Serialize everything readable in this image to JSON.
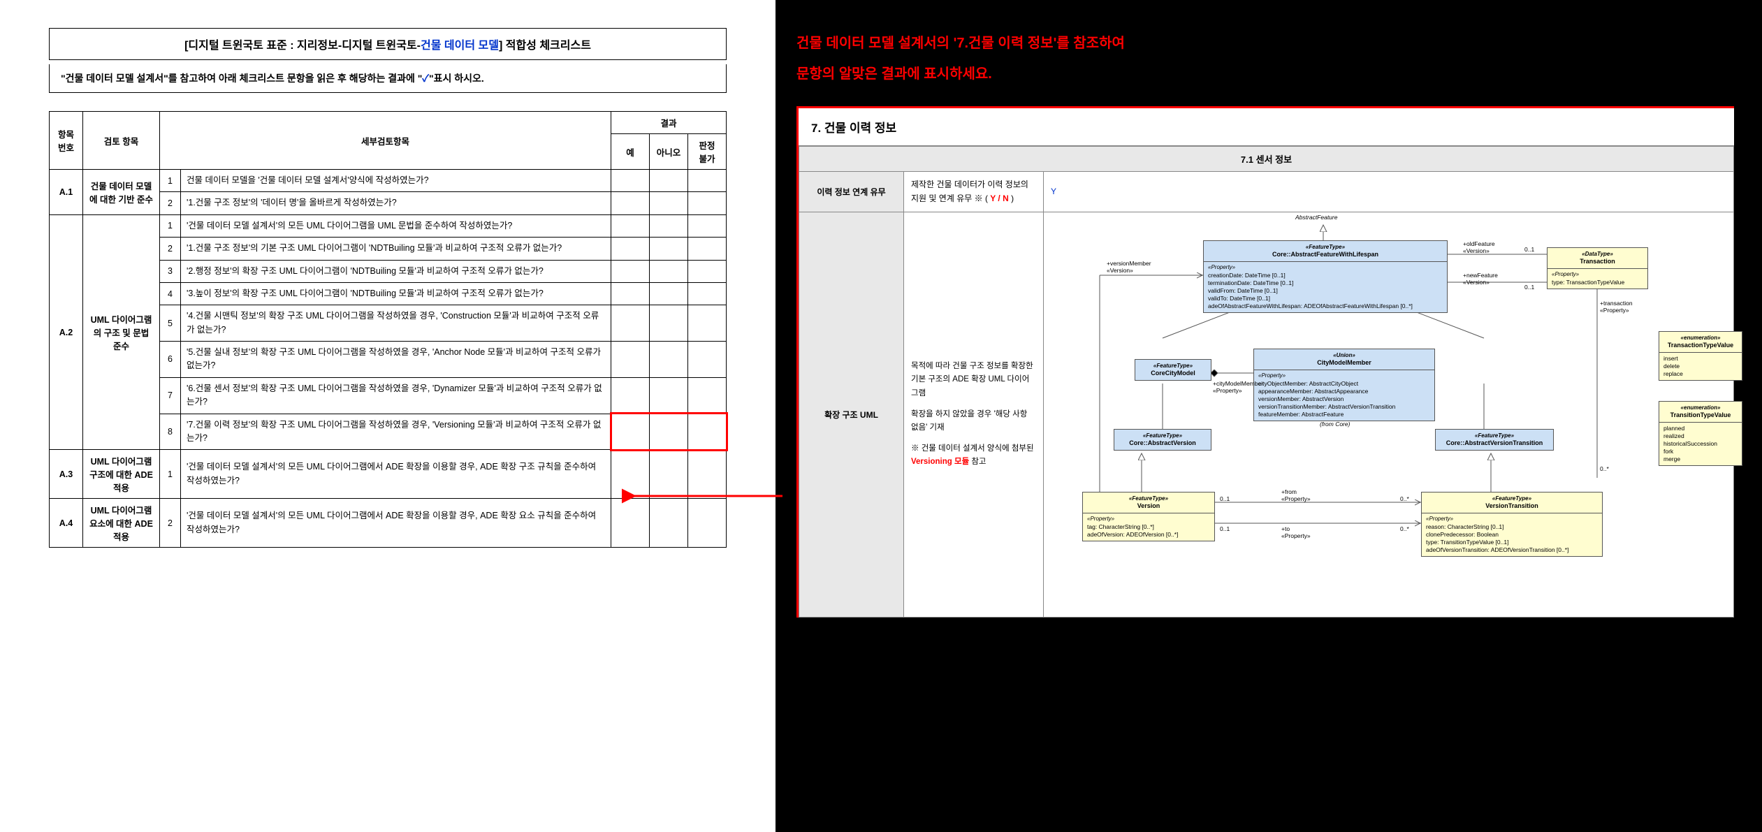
{
  "header": {
    "title_prefix": "[디지털 트윈국토 표준 : 지리정보-디지털 트윈국토-",
    "title_highlight": "건물 데이터 모델",
    "title_suffix": "] 적합성 체크리스트",
    "instruction_prefix": "\"건물 데이터 모델 설계서\"를 참고하여 아래 체크리스트 문항을 읽은 후 해당하는 결과에 \"",
    "instruction_check": "✓",
    "instruction_suffix": "\"표시 하시오."
  },
  "table": {
    "columns": {
      "item_no": "항목\n번호",
      "review_item": "검토 항목",
      "detail": "세부검토항목",
      "result": "결과",
      "yes": "예",
      "no": "아니오",
      "na": "판정\n불가"
    },
    "rows": [
      {
        "id": "A.1",
        "category": "건물 데이터 모델에 대한 기반 준수",
        "items": [
          {
            "n": "1",
            "text": "건물 데이터 모델을 '건물 데이터 모델 설계서'양식에 작성하였는가?"
          },
          {
            "n": "2",
            "text": "'1.건물 구조 정보'의 '데이터 명'을 올바르게 작성하였는가?"
          }
        ]
      },
      {
        "id": "A.2",
        "category": "UML 다이어그램의 구조 및 문법 준수",
        "items": [
          {
            "n": "1",
            "text": "'건물 데이터 모델 설계서'의 모든 UML 다이어그램을 UML 문법을 준수하여 작성하였는가?"
          },
          {
            "n": "2",
            "text": "'1.건물 구조 정보'의 기본 구조 UML 다이어그램이 'NDTBuiling 모듈'과 비교하여 구조적 오류가 없는가?"
          },
          {
            "n": "3",
            "text": "'2.행정 정보'의 확장 구조 UML 다이어그램이 'NDTBuiling 모듈'과 비교하여 구조적 오류가 없는가?"
          },
          {
            "n": "4",
            "text": "'3.높이 정보'의 확장 구조 UML 다이어그램이 'NDTBuiling 모듈'과 비교하여 구조적 오류가 없는가?"
          },
          {
            "n": "5",
            "text": "'4.건물 시맨틱 정보'의 확장 구조 UML 다이어그램을 작성하였을 경우, 'Construction 모듈'과 비교하여 구조적 오류가 없는가?"
          },
          {
            "n": "6",
            "text": "'5.건물 실내 정보'의 확장 구조 UML 다이어그램을 작성하였을 경우, 'Anchor Node 모듈'과 비교하여 구조적 오류가 없는가?"
          },
          {
            "n": "7",
            "text": "'6.건물 센서 정보'의 확장 구조 UML 다이어그램을 작성하였을 경우, 'Dynamizer 모듈'과 비교하여 구조적 오류가 없는가?"
          },
          {
            "n": "8",
            "text": "'7.건물 이력 정보'의 확장 구조 UML 다이어그램을 작성하였을 경우, 'Versioning 모듈'과 비교하여 구조적 오류가 없는가?",
            "highlight": true
          }
        ]
      },
      {
        "id": "A.3",
        "category": "UML 다이어그램 구조에 대한 ADE 적용",
        "items": [
          {
            "n": "1",
            "text": "'건물 데이터 모델 설계서'의 모든 UML 다이어그램에서 ADE 확장을 이용할 경우, ADE 확장 구조 규칙을 준수하여 작성하였는가?"
          }
        ]
      },
      {
        "id": "A.4",
        "category": "UML 다이어그램 요소에 대한 ADE 적용",
        "items": [
          {
            "n": "2",
            "text": "'건물 데이터 모델 설계서'의 모든 UML 다이어그램에서 ADE 확장을 이용할 경우, ADE 확장 요소 규칙을 준수하여 작성하였는가?"
          }
        ]
      }
    ]
  },
  "right": {
    "instruction_line1": "건물 데이터 모델 설계서의 '7.건물 이력 정보'를 참조하여",
    "instruction_line2": "문항의 알맞은 결과에 표시하세요.",
    "section_title": "7. 건물 이력 정보",
    "subsection_title": "7.1 센서 정보",
    "row1_label": "이력 정보 연계 유무",
    "row1_desc_prefix": "제작한 건물 데이터가 이력 정보의 지원 및 연계 유무 ※ ( ",
    "row1_desc_yn": "Y / N",
    "row1_desc_suffix": " )",
    "row1_value": "Y",
    "row2_label": "확장 구조 UML",
    "row2_desc_line1": "목적에 따라 건물 구조 정보를 확장한 기본 구조의 ADE 확장 UML 다이어그램",
    "row2_desc_line2": "확장을 하지 않았을 경우 '해당 사항 없음' 기재",
    "row2_desc_line3_prefix": "※ 건물 데이터 설계서 양식에 첨부된 ",
    "row2_desc_line3_highlight": "Versioning 모듈",
    "row2_desc_line3_suffix": " 참고"
  },
  "uml": {
    "abstract_feature": "AbstractFeature",
    "core_afwl": {
      "stereo": "«FeatureType»",
      "name": "Core::AbstractFeatureWithLifespan",
      "props": [
        "creationDate: DateTime [0..1]",
        "terminationDate: DateTime [0..1]",
        "validFrom: DateTime [0..1]",
        "validTo: DateTime [0..1]",
        "adeOfAbstractFeatureWithLifespan: ADEOfAbstractFeatureWithLifespan [0..*]"
      ],
      "prop_label": "«Property»"
    },
    "transaction": {
      "stereo": "«DataType»",
      "name": "Transaction",
      "props": [
        "type: TransactionTypeValue"
      ],
      "prop_label": "«Property»"
    },
    "corecitymodel": {
      "stereo": "«FeatureType»",
      "name": "CoreCityModel"
    },
    "citymodelmember": {
      "stereo": "«Union»",
      "name": "CityModelMember",
      "props": [
        "cityObjectMember: AbstractCityObject",
        "appearanceMember: AbstractAppearance",
        "versionMember: AbstractVersion",
        "versionTransitionMember: AbstractVersionTransition",
        "featureMember: AbstractFeature"
      ],
      "prop_label": "«Property»"
    },
    "core_absversion": {
      "stereo": "«FeatureType»",
      "name": "Core::AbstractVersion"
    },
    "core_absversiontrans": {
      "stereo": "«FeatureType»",
      "name": "Core::AbstractVersionTransition"
    },
    "version": {
      "stereo": "«FeatureType»",
      "name": "Version",
      "props": [
        "tag: CharacterString [0..*]",
        "adeOfVersion: ADEOfVersion [0..*]"
      ],
      "prop_label": "«Property»"
    },
    "versiontransition": {
      "stereo": "«FeatureType»",
      "name": "VersionTransition",
      "props": [
        "reason: CharacterString [0..1]",
        "clonePredecessor: Boolean",
        "type: TransitionTypeValue [0..1]",
        "adeOfVersionTransition: ADEOfVersionTransition [0..*]"
      ],
      "prop_label": "«Property»"
    },
    "transtypevalue": {
      "stereo": "«enumeration»",
      "name": "TransactionTypeValue",
      "props": [
        "insert",
        "delete",
        "replace"
      ]
    },
    "transitiontypevalue": {
      "stereo": "«enumeration»",
      "name": "TransitionTypeValue",
      "props": [
        "planned",
        "realized",
        "historicalSuccession",
        "fork",
        "merge"
      ]
    },
    "from_core": "(from Core)",
    "labels": {
      "versionMember": "+versionMember\n«Version»",
      "oldFeature": "+oldFeature\n«Version»",
      "newFeature": "+newFeature\n«Version»",
      "transaction": "+transaction\n«Property»",
      "cityModelMember": "+cityModelMember\n«Property»",
      "from": "+from\n«Property»",
      "to": "+to\n«Property»",
      "c01": "0..1",
      "c0s": "0..*",
      "c1": "*"
    }
  },
  "colors": {
    "uml_blue": "#cce0f5",
    "uml_yellow": "#fffdd0",
    "red": "#ff0000",
    "blue": "#0033cc",
    "border": "#555555",
    "gray_bg": "#e8e8e8"
  }
}
